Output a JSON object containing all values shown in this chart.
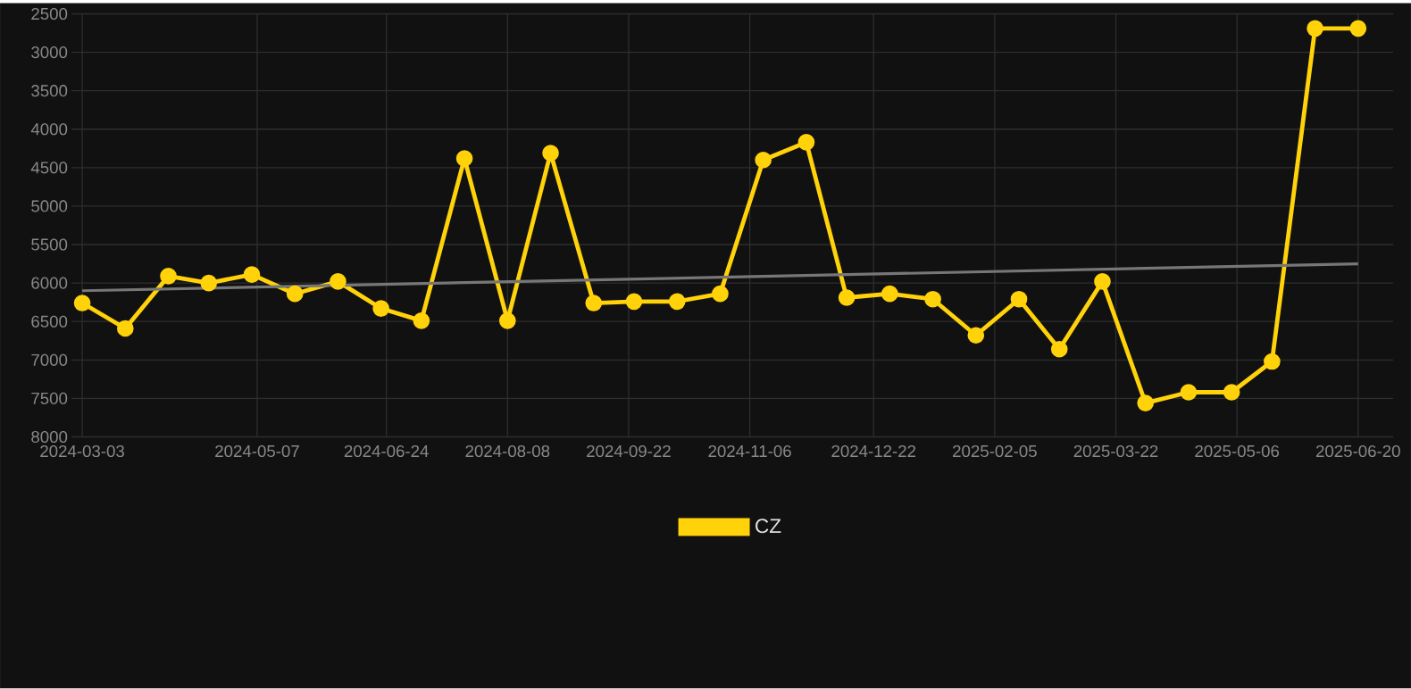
{
  "chart_data": {
    "type": "line",
    "x": [
      "2024-03-03",
      "2024-03-19",
      "2024-04-04",
      "2024-04-19",
      "2024-05-05",
      "2024-05-21",
      "2024-06-06",
      "2024-06-22",
      "2024-07-07",
      "2024-07-23",
      "2024-08-08",
      "2024-08-24",
      "2024-09-09",
      "2024-09-24",
      "2024-10-10",
      "2024-10-26",
      "2024-11-11",
      "2024-11-27",
      "2024-12-12",
      "2024-12-28",
      "2025-01-13",
      "2025-01-29",
      "2025-02-14",
      "2025-03-01",
      "2025-03-17",
      "2025-04-02",
      "2025-04-18",
      "2025-05-04",
      "2025-05-19",
      "2025-06-04",
      "2025-06-20"
    ],
    "series": [
      {
        "name": "CZ",
        "color": "#ffd20a",
        "marker": "circle",
        "values": [
          6260,
          6590,
          5910,
          6000,
          5890,
          6140,
          5980,
          6330,
          6490,
          4380,
          6490,
          4310,
          6260,
          6240,
          6240,
          6140,
          4400,
          4170,
          6190,
          6140,
          6210,
          6680,
          6210,
          6860,
          5980,
          7560,
          7420,
          7420,
          7020,
          2690,
          2690
        ]
      },
      {
        "type": "line",
        "color": "#777777",
        "marker": "none",
        "x": [
          "2024-03-03",
          "2025-06-20"
        ],
        "values": [
          6100,
          5750
        ]
      }
    ],
    "xlim": [
      "2024-02-28",
      "2025-07-03"
    ],
    "xticks": [
      "2024-03-03",
      "2024-05-07",
      "2024-06-24",
      "2024-08-08",
      "2024-09-22",
      "2024-11-06",
      "2024-12-22",
      "2025-02-05",
      "2025-03-22",
      "2025-05-06",
      "2025-06-20"
    ],
    "ylim": [
      8000,
      2500
    ],
    "yticks": [
      2500,
      3000,
      3500,
      4000,
      4500,
      5000,
      5500,
      6000,
      6500,
      7000,
      7500,
      8000
    ],
    "grid": true,
    "legend": "bottom",
    "line_style": "solid"
  }
}
